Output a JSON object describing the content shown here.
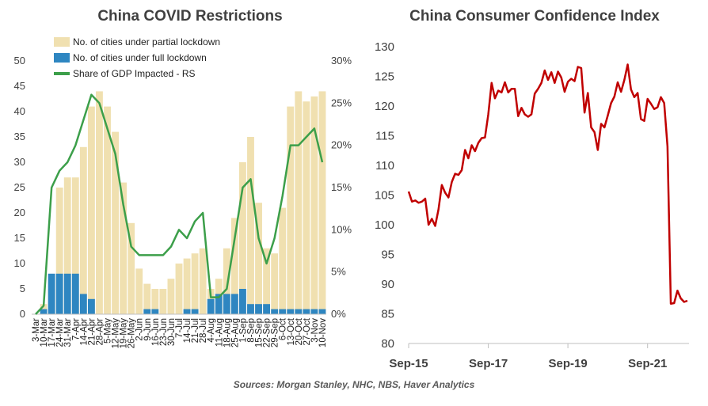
{
  "chart_data": [
    {
      "type": "bar+line",
      "title": "China COVID Restrictions",
      "series": [
        {
          "name": "No. of cities under partial lockdown",
          "kind": "bar",
          "axis": "left",
          "color": "#f0e0b0"
        },
        {
          "name": "No. of cities under full lockdown",
          "kind": "bar",
          "axis": "left",
          "color": "#2e86c1"
        },
        {
          "name": "Share of GDP Impacted - RS",
          "kind": "line",
          "axis": "right",
          "color": "#3c9f4a"
        }
      ],
      "x_labels": [
        "3-Mar",
        "10-Mar",
        "17-Mar",
        "24-Mar",
        "31-Mar",
        "7-Apr",
        "14-Apr",
        "21-Apr",
        "28-Apr",
        "5-May",
        "12-May",
        "19-May",
        "26-May",
        "2-Jun",
        "9-Jun",
        "16-Jun",
        "23-Jun",
        "30-Jun",
        "7-Jul",
        "14-Jul",
        "21-Jul",
        "28-Jul",
        "4-Aug",
        "11-Aug",
        "18-Aug",
        "25-Aug",
        "1-Sep",
        "8-Sep",
        "15-Sep",
        "22-Sep",
        "29-Sep",
        "6-Oct",
        "13-Oct",
        "20-Oct",
        "27-Oct",
        "3-Nov",
        "10-Nov"
      ],
      "partial": [
        0,
        2,
        5,
        25,
        27,
        27,
        33,
        41,
        44,
        41,
        36,
        26,
        18,
        9,
        6,
        5,
        5,
        7,
        10,
        11,
        12,
        13,
        5,
        7,
        13,
        19,
        30,
        35,
        22,
        13,
        12,
        21,
        41,
        44,
        42,
        43,
        44
      ],
      "full": [
        0,
        1,
        8,
        8,
        8,
        8,
        4,
        3,
        0,
        0,
        0,
        0,
        0,
        0,
        1,
        1,
        0,
        0,
        0,
        1,
        1,
        0,
        3,
        4,
        4,
        4,
        5,
        2,
        2,
        2,
        1,
        1,
        1,
        1,
        1,
        1,
        1
      ],
      "gdp_share": [
        0,
        1,
        15,
        17,
        18,
        20,
        23,
        26,
        25,
        22,
        19,
        13,
        8,
        7,
        7,
        7,
        7,
        8,
        10,
        9,
        11,
        12,
        2,
        2,
        3,
        9,
        15,
        16,
        9,
        6,
        9,
        14,
        20,
        20,
        21,
        22,
        18
      ],
      "y_left": {
        "min": 0,
        "max": 50,
        "ticks": [
          "0",
          "5",
          "10",
          "15",
          "20",
          "25",
          "30",
          "35",
          "40",
          "45",
          "50"
        ]
      },
      "y_right": {
        "min": 0,
        "max": 30,
        "ticks": [
          "0%",
          "5%",
          "10%",
          "15%",
          "20%",
          "25%",
          "30%"
        ]
      }
    },
    {
      "type": "line",
      "title": "China Consumer Confidence Index",
      "color": "#c00000",
      "x": [
        "2015-09",
        "2015-10",
        "2015-11",
        "2015-12",
        "2016-01",
        "2016-02",
        "2016-03",
        "2016-04",
        "2016-05",
        "2016-06",
        "2016-07",
        "2016-08",
        "2016-09",
        "2016-10",
        "2016-11",
        "2016-12",
        "2017-01",
        "2017-02",
        "2017-03",
        "2017-04",
        "2017-05",
        "2017-06",
        "2017-07",
        "2017-08",
        "2017-09",
        "2017-10",
        "2017-11",
        "2017-12",
        "2018-01",
        "2018-02",
        "2018-03",
        "2018-04",
        "2018-05",
        "2018-06",
        "2018-07",
        "2018-08",
        "2018-09",
        "2018-10",
        "2018-11",
        "2018-12",
        "2019-01",
        "2019-02",
        "2019-03",
        "2019-04",
        "2019-05",
        "2019-06",
        "2019-07",
        "2019-08",
        "2019-09",
        "2019-10",
        "2019-11",
        "2019-12",
        "2020-01",
        "2020-02",
        "2020-03",
        "2020-04",
        "2020-05",
        "2020-06",
        "2020-07",
        "2020-08",
        "2020-09",
        "2020-10",
        "2020-11",
        "2020-12",
        "2021-01",
        "2021-02",
        "2021-03",
        "2021-04",
        "2021-05",
        "2021-06",
        "2021-07",
        "2021-08",
        "2021-09",
        "2021-10",
        "2021-11",
        "2021-12",
        "2022-01",
        "2022-02",
        "2022-03",
        "2022-04",
        "2022-05",
        "2022-06",
        "2022-07",
        "2022-08",
        "2022-09"
      ],
      "values": [
        105.6,
        103.9,
        104.1,
        103.7,
        103.9,
        104.4,
        100.0,
        101.0,
        99.8,
        102.6,
        106.7,
        105.4,
        104.6,
        107.2,
        108.6,
        108.4,
        109.2,
        112.6,
        111.2,
        113.4,
        112.4,
        113.8,
        114.6,
        114.7,
        118.6,
        123.9,
        121.3,
        122.6,
        122.3,
        124.0,
        122.3,
        122.9,
        122.9,
        118.3,
        119.7,
        118.6,
        118.2,
        118.6,
        122.1,
        122.9,
        123.9,
        126.0,
        124.4,
        125.7,
        123.9,
        125.8,
        124.8,
        122.4,
        124.1,
        124.6,
        124.2,
        126.6,
        126.4,
        118.9,
        122.2,
        116.4,
        115.6,
        112.6,
        117.0,
        116.4,
        118.4,
        120.5,
        121.6,
        124.0,
        122.4,
        124.4,
        127.0,
        122.8,
        121.5,
        122.2,
        117.8,
        117.5,
        121.2,
        120.4,
        119.5,
        119.8,
        121.5,
        120.5,
        113.2,
        86.7,
        86.8,
        88.9,
        87.6,
        87.0,
        87.2
      ],
      "x_ticks": [
        "Sep-15",
        "Sep-17",
        "Sep-19",
        "Sep-21"
      ],
      "y": {
        "min": 80,
        "max": 130,
        "ticks": [
          "80",
          "85",
          "90",
          "95",
          "100",
          "105",
          "110",
          "115",
          "120",
          "125",
          "130"
        ]
      }
    }
  ],
  "source": "Sources: Morgan Stanley, NHC, NBS, Haver Analytics"
}
